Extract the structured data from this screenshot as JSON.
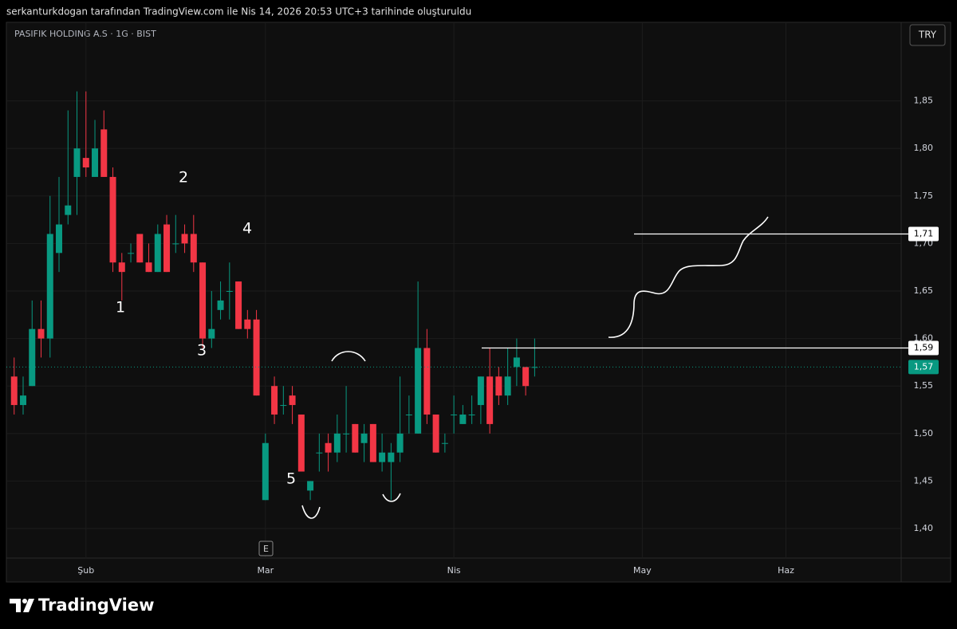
{
  "chart_data": {
    "type": "candlestick",
    "header": "serkanturkdogan tarafından TradingView.com ile Nis 14, 2026 20:53 UTC+3 tarihinde oluşturuldu",
    "title": "PASIFIK HOLDING A.S · 1G · BIST",
    "currency": "TRY",
    "open": [
      1.56,
      1.53,
      1.55,
      1.61,
      1.6,
      1.69,
      1.73,
      1.77,
      1.79,
      1.77,
      1.82,
      1.77,
      1.68,
      1.69,
      1.71,
      1.68,
      1.67,
      1.72,
      1.7,
      1.71,
      1.71,
      1.68,
      1.6,
      1.63,
      1.65,
      1.66,
      1.62,
      1.62,
      1.43,
      1.55,
      1.53,
      1.54,
      1.52,
      1.44,
      1.48,
      1.49,
      1.48,
      1.5,
      1.51,
      1.49,
      1.51,
      1.47,
      1.47,
      1.48,
      1.52,
      1.5,
      1.59,
      1.52,
      1.49,
      1.52,
      1.51,
      1.52,
      1.53,
      1.56,
      1.56,
      1.54,
      1.57,
      1.57,
      1.57
    ],
    "high": [
      1.58,
      1.56,
      1.64,
      1.64,
      1.75,
      1.77,
      1.84,
      1.86,
      1.86,
      1.83,
      1.84,
      1.78,
      1.69,
      1.7,
      1.71,
      1.7,
      1.72,
      1.73,
      1.73,
      1.72,
      1.73,
      1.68,
      1.65,
      1.66,
      1.68,
      1.66,
      1.63,
      1.63,
      1.5,
      1.56,
      1.55,
      1.55,
      1.52,
      1.45,
      1.5,
      1.5,
      1.52,
      1.55,
      1.51,
      1.51,
      1.51,
      1.5,
      1.49,
      1.56,
      1.54,
      1.66,
      1.61,
      1.52,
      1.5,
      1.54,
      1.53,
      1.54,
      1.56,
      1.59,
      1.57,
      1.59,
      1.6,
      1.57,
      1.6
    ],
    "low": [
      1.52,
      1.52,
      1.55,
      1.58,
      1.58,
      1.67,
      1.72,
      1.73,
      1.77,
      1.77,
      1.77,
      1.67,
      1.64,
      1.68,
      1.68,
      1.67,
      1.67,
      1.67,
      1.69,
      1.69,
      1.67,
      1.59,
      1.59,
      1.62,
      1.62,
      1.61,
      1.6,
      1.54,
      1.43,
      1.51,
      1.52,
      1.51,
      1.46,
      1.43,
      1.46,
      1.46,
      1.47,
      1.48,
      1.48,
      1.47,
      1.47,
      1.46,
      1.43,
      1.47,
      1.5,
      1.5,
      1.51,
      1.48,
      1.48,
      1.5,
      1.51,
      1.51,
      1.51,
      1.5,
      1.53,
      1.53,
      1.55,
      1.54,
      1.56
    ],
    "close": [
      1.53,
      1.54,
      1.61,
      1.6,
      1.71,
      1.72,
      1.74,
      1.8,
      1.78,
      1.8,
      1.77,
      1.68,
      1.67,
      1.69,
      1.68,
      1.67,
      1.71,
      1.67,
      1.7,
      1.7,
      1.68,
      1.6,
      1.61,
      1.64,
      1.65,
      1.61,
      1.61,
      1.54,
      1.49,
      1.52,
      1.53,
      1.53,
      1.46,
      1.45,
      1.48,
      1.48,
      1.5,
      1.5,
      1.48,
      1.5,
      1.47,
      1.48,
      1.48,
      1.5,
      1.52,
      1.59,
      1.52,
      1.48,
      1.49,
      1.52,
      1.52,
      1.52,
      1.56,
      1.51,
      1.54,
      1.56,
      1.58,
      1.55,
      1.57
    ],
    "up_color": "#089981",
    "down_color": "#f23645",
    "ylim": [
      1.369,
      1.931
    ],
    "yticks": [
      {
        "value": 1.4,
        "label": "1,40"
      },
      {
        "value": 1.45,
        "label": "1,45"
      },
      {
        "value": 1.5,
        "label": "1,50"
      },
      {
        "value": 1.55,
        "label": "1,55"
      },
      {
        "value": 1.6,
        "label": "1,60"
      },
      {
        "value": 1.65,
        "label": "1,65"
      },
      {
        "value": 1.7,
        "label": "1,70"
      },
      {
        "value": 1.75,
        "label": "1,75"
      },
      {
        "value": 1.8,
        "label": "1,80"
      },
      {
        "value": 1.85,
        "label": "1,85"
      }
    ],
    "xlim": [
      -0.6,
      98.4
    ],
    "xticks": [
      {
        "value": 8,
        "label": "Şub"
      },
      {
        "value": 28,
        "label": "Mar"
      },
      {
        "value": 49,
        "label": "Nis"
      },
      {
        "value": 70,
        "label": "May"
      },
      {
        "value": 86,
        "label": "Haz"
      }
    ],
    "grid": true,
    "last_price": {
      "value": 1.57,
      "label": "1,57"
    },
    "levels": [
      {
        "value": 1.59,
        "label": "1,59"
      },
      {
        "value": 1.71,
        "label": "1,71"
      }
    ],
    "annotations": [
      "1",
      "2",
      "3",
      "4",
      "5"
    ],
    "event": "E",
    "brand": "TradingView"
  }
}
